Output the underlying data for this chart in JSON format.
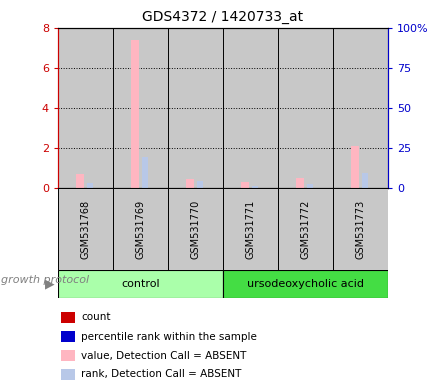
{
  "title": "GDS4372 / 1420733_at",
  "samples": [
    "GSM531768",
    "GSM531769",
    "GSM531770",
    "GSM531771",
    "GSM531772",
    "GSM531773"
  ],
  "value_absent": [
    0.7,
    7.4,
    0.45,
    0.28,
    0.5,
    2.1
  ],
  "rank_absent": [
    0.25,
    1.55,
    0.35,
    0.08,
    0.18,
    0.75
  ],
  "left_ylim": [
    0,
    8
  ],
  "right_ylim": [
    0,
    100
  ],
  "left_yticks": [
    0,
    2,
    4,
    6,
    8
  ],
  "right_yticks": [
    0,
    25,
    50,
    75,
    100
  ],
  "right_yticklabels": [
    "0",
    "25",
    "50",
    "75",
    "100%"
  ],
  "left_color": "#CC0000",
  "right_color": "#0000CC",
  "bg_color": "#C8C8C8",
  "group_control_color": "#AAFFAA",
  "group_udca_color": "#44DD44",
  "legend_items": [
    {
      "color": "#CC0000",
      "label": "count"
    },
    {
      "color": "#0000CC",
      "label": "percentile rank within the sample"
    },
    {
      "color": "#FFB6C1",
      "label": "value, Detection Call = ABSENT"
    },
    {
      "color": "#B8C8E8",
      "label": "rank, Detection Call = ABSENT"
    }
  ],
  "growth_protocol_text": "growth protocol"
}
